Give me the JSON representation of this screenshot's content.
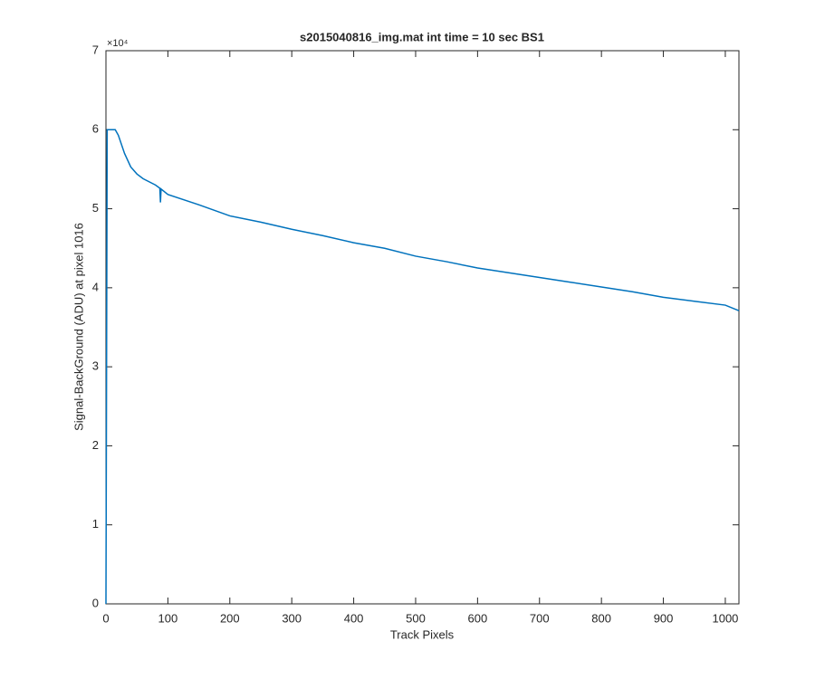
{
  "chart_data": {
    "type": "line",
    "title": "s2015040816_img.mat int time = 10 sec   BS1",
    "x_label": "Track Pixels",
    "y_label": "Signal-BackGround (ADU) at pixel 1016",
    "y_exponent_label": "×10⁴",
    "x": [
      0,
      2,
      5,
      15,
      20,
      30,
      40,
      50,
      60,
      80,
      87,
      88,
      89,
      100,
      150,
      200,
      250,
      300,
      350,
      400,
      450,
      500,
      550,
      600,
      650,
      700,
      750,
      800,
      850,
      900,
      950,
      1000,
      1022
    ],
    "series": [
      {
        "name": "signal",
        "color": "#0072bd",
        "values": [
          0,
          60000,
          60000,
          60000,
          59300,
          57000,
          55300,
          54400,
          53800,
          53000,
          52600,
          50800,
          52500,
          51800,
          50500,
          49100,
          48300,
          47400,
          46600,
          45700,
          45000,
          44000,
          43300,
          42500,
          41900,
          41300,
          40700,
          40100,
          39500,
          38800,
          38300,
          37800,
          37100
        ]
      }
    ],
    "xlim": [
      0,
      1022
    ],
    "ylim": [
      0,
      70000
    ],
    "xticks": [
      0,
      100,
      200,
      300,
      400,
      500,
      600,
      700,
      800,
      900,
      1000
    ],
    "yticks": [
      {
        "value": 0,
        "label": "0"
      },
      {
        "value": 10000,
        "label": "1"
      },
      {
        "value": 20000,
        "label": "2"
      },
      {
        "value": 30000,
        "label": "3"
      },
      {
        "value": 40000,
        "label": "4"
      },
      {
        "value": 50000,
        "label": "5"
      },
      {
        "value": 60000,
        "label": "6"
      },
      {
        "value": 70000,
        "label": "7"
      }
    ],
    "grid": false
  }
}
